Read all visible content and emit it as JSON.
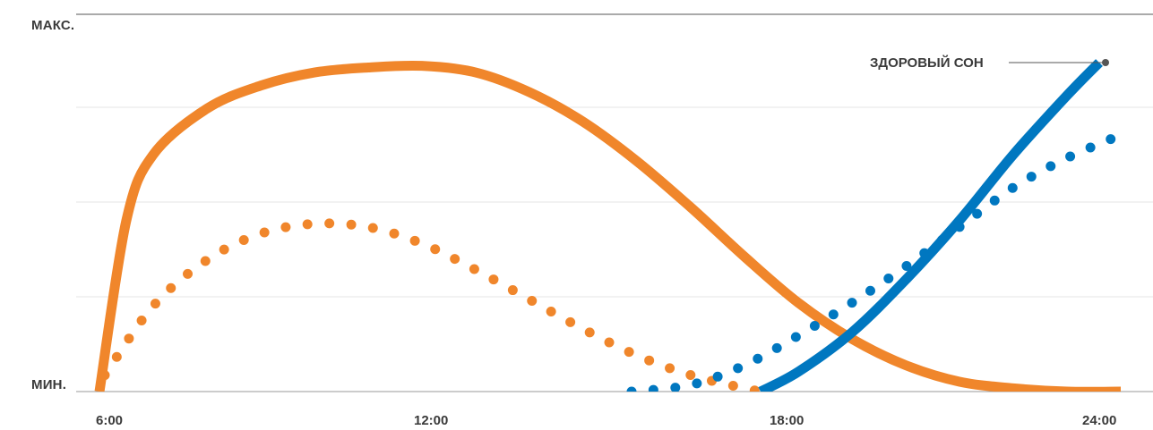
{
  "chart_data": {
    "type": "line",
    "y_labels": {
      "max": "МАКС.",
      "min": "МИН."
    },
    "x": {
      "range": [
        5,
        25
      ],
      "ticks": [
        6,
        12,
        18,
        24
      ],
      "tick_labels": [
        "6:00",
        "12:00",
        "18:00",
        "24:00"
      ]
    },
    "y": {
      "range": [
        0,
        100
      ]
    },
    "grid": true,
    "annotation": {
      "text": "ЗДОРОВЫЙ СОН"
    },
    "series": [
      {
        "style": "solid",
        "color": "#f0862b",
        "points": [
          [
            6,
            0
          ],
          [
            6.5,
            52
          ],
          [
            7,
            72
          ],
          [
            8,
            86
          ],
          [
            9,
            93
          ],
          [
            10,
            97
          ],
          [
            11,
            98.5
          ],
          [
            12,
            99
          ],
          [
            13,
            97
          ],
          [
            14,
            91
          ],
          [
            15,
            82
          ],
          [
            16,
            70
          ],
          [
            17,
            56
          ],
          [
            18,
            41
          ],
          [
            19,
            27
          ],
          [
            20,
            16
          ],
          [
            21,
            8
          ],
          [
            22,
            3
          ],
          [
            23,
            1
          ],
          [
            24,
            0
          ],
          [
            25,
            0
          ]
        ]
      },
      {
        "style": "dotted",
        "color": "#f0862b",
        "points": [
          [
            6.1,
            5
          ],
          [
            7,
            26
          ],
          [
            8,
            40
          ],
          [
            9,
            48
          ],
          [
            10,
            51
          ],
          [
            11,
            50
          ],
          [
            12,
            45
          ],
          [
            13,
            37
          ],
          [
            14,
            28
          ],
          [
            15,
            19
          ],
          [
            16,
            11
          ],
          [
            17,
            5
          ],
          [
            18,
            1
          ],
          [
            18.3,
            0
          ]
        ]
      },
      {
        "style": "solid",
        "color": "#0077c0",
        "points": [
          [
            18.3,
            0
          ],
          [
            19,
            6
          ],
          [
            20,
            18
          ],
          [
            21,
            34
          ],
          [
            22,
            52
          ],
          [
            23,
            72
          ],
          [
            24,
            90
          ],
          [
            24.6,
            100
          ]
        ]
      },
      {
        "style": "dotted",
        "color": "#0077c0",
        "points": [
          [
            15.9,
            0
          ],
          [
            17,
            2
          ],
          [
            18,
            8
          ],
          [
            19,
            17
          ],
          [
            20,
            27
          ],
          [
            21,
            38
          ],
          [
            22,
            50
          ],
          [
            23,
            62
          ],
          [
            24,
            71
          ],
          [
            25,
            78
          ]
        ]
      }
    ]
  }
}
